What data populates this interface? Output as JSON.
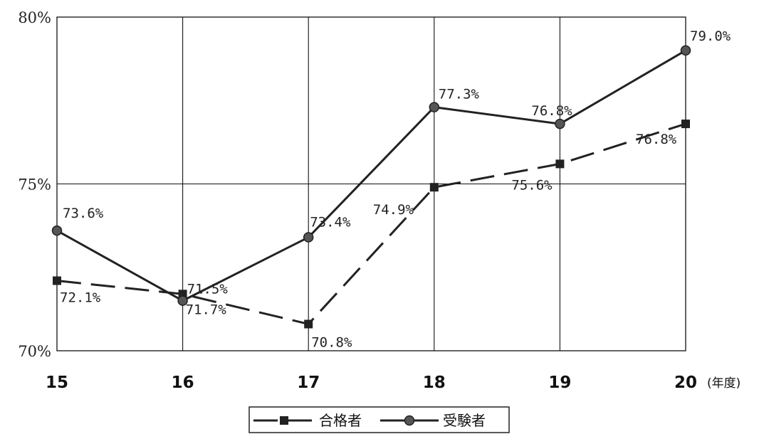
{
  "chart_data": {
    "type": "line",
    "categories": [
      "15",
      "16",
      "17",
      "18",
      "19",
      "20"
    ],
    "x_unit": "(年度)",
    "ylim": [
      70,
      80
    ],
    "y_ticks": [
      "70%",
      "75%",
      "80%"
    ],
    "grid": true,
    "legend_position": "bottom",
    "series": [
      {
        "name": "合格者",
        "style": "dashed",
        "marker": "square",
        "color": "#222222",
        "values": [
          72.1,
          71.7,
          70.8,
          74.9,
          75.6,
          76.8
        ],
        "labels": [
          "72.1%",
          "71.7%",
          "70.8%",
          "74.9%",
          "75.6%",
          "76.8%"
        ]
      },
      {
        "name": "受験者",
        "style": "solid",
        "marker": "circle",
        "color": "#222222",
        "values": [
          73.6,
          71.5,
          73.4,
          77.3,
          76.8,
          79.0
        ],
        "labels": [
          "73.6%",
          "71.5%",
          "73.4%",
          "77.3%",
          "76.8%",
          "79.0%"
        ]
      }
    ]
  }
}
